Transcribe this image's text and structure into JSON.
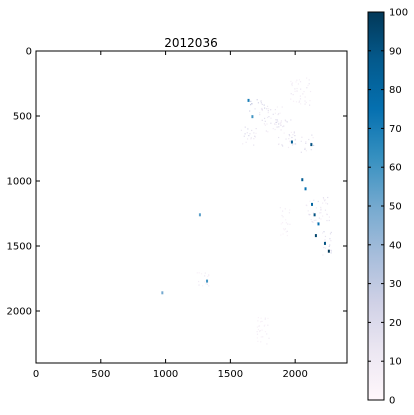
{
  "chart_data": [
    {
      "type": "heatmap",
      "title": "2012036",
      "xlabel": "",
      "ylabel": "",
      "xlim": [
        0,
        2400
      ],
      "ylim": [
        2400,
        0
      ],
      "y_inverted": true,
      "x_ticks": [
        0,
        500,
        1000,
        1500,
        2000
      ],
      "y_ticks": [
        0,
        500,
        1000,
        1500,
        2000
      ],
      "grid": false,
      "colormap": "PuBu",
      "color_range": [
        0,
        100
      ],
      "background_color": "#ffffff",
      "clusters": [
        {
          "x": [
            1620,
            1760
          ],
          "y": [
            360,
            470
          ],
          "value": 25
        },
        {
          "x": [
            1580,
            1700
          ],
          "y": [
            560,
            720
          ],
          "value": 20
        },
        {
          "x": [
            1720,
            1900
          ],
          "y": [
            420,
            620
          ],
          "value": 15
        },
        {
          "x": [
            1850,
            2000
          ],
          "y": [
            520,
            760
          ],
          "value": 18
        },
        {
          "x": [
            1960,
            2120
          ],
          "y": [
            200,
            420
          ],
          "value": 12
        },
        {
          "x": [
            2040,
            2140
          ],
          "y": [
            640,
            780
          ],
          "value": 22
        },
        {
          "x": [
            2080,
            2260
          ],
          "y": [
            1120,
            1320
          ],
          "value": 15
        },
        {
          "x": [
            2200,
            2280
          ],
          "y": [
            1380,
            1580
          ],
          "value": 20
        },
        {
          "x": [
            1880,
            1960
          ],
          "y": [
            1200,
            1440
          ],
          "value": 10
        },
        {
          "x": [
            1240,
            1360
          ],
          "y": [
            1700,
            1820
          ],
          "value": 12
        },
        {
          "x": [
            1700,
            1800
          ],
          "y": [
            2000,
            2260
          ],
          "value": 8
        }
      ],
      "hotspots": [
        {
          "x": 1640,
          "y": 380,
          "value": 70
        },
        {
          "x": 1670,
          "y": 505,
          "value": 60
        },
        {
          "x": 1975,
          "y": 700,
          "value": 85
        },
        {
          "x": 2125,
          "y": 720,
          "value": 90
        },
        {
          "x": 2055,
          "y": 990,
          "value": 85
        },
        {
          "x": 2080,
          "y": 1060,
          "value": 75
        },
        {
          "x": 2130,
          "y": 1180,
          "value": 80
        },
        {
          "x": 2150,
          "y": 1260,
          "value": 90
        },
        {
          "x": 2180,
          "y": 1330,
          "value": 75
        },
        {
          "x": 2160,
          "y": 1420,
          "value": 95
        },
        {
          "x": 2230,
          "y": 1480,
          "value": 90
        },
        {
          "x": 2260,
          "y": 1540,
          "value": 100
        },
        {
          "x": 1265,
          "y": 1260,
          "value": 55
        },
        {
          "x": 1320,
          "y": 1770,
          "value": 60
        },
        {
          "x": 975,
          "y": 1860,
          "value": 50
        }
      ]
    },
    {
      "type": "colorbar",
      "range": [
        0,
        100
      ],
      "ticks": [
        0,
        10,
        20,
        30,
        40,
        50,
        60,
        70,
        80,
        90,
        100
      ],
      "colormap": "PuBu",
      "colors": [
        "#fff7fb",
        "#ece7f2",
        "#d0d1e6",
        "#a6bddb",
        "#74a9cf",
        "#3690c0",
        "#0570b0",
        "#045a8d",
        "#023858"
      ]
    }
  ]
}
